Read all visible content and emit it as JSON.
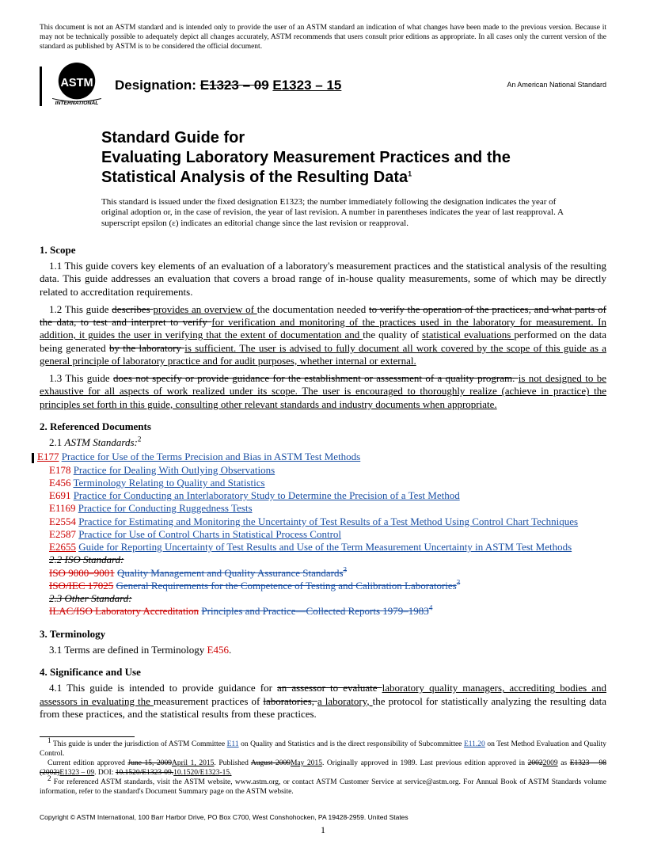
{
  "colors": {
    "code": "#cc0000",
    "link": "#1a4fa3",
    "text": "#000000",
    "bg": "#ffffff"
  },
  "top_note": "This document is not an ASTM standard and is intended only to provide the user of an ASTM standard an indication of what changes have been made to the previous version. Because it may not be technically possible to adequately depict all changes accurately, ASTM recommends that users consult prior editions as appropriate. In all cases only the current version of the standard as published by ASTM is to be considered the official document.",
  "logo_text": "INTERNATIONAL",
  "designation_label": "Designation:",
  "designation_old": "E1323 – 09",
  "designation_new": "E1323 – 15",
  "ansi": "An American National Standard",
  "title_prefix": "Standard Guide for",
  "title_main": "Evaluating Laboratory Measurement Practices and the Statistical Analysis of the Resulting Data",
  "title_sup": "1",
  "issue_note": "This standard is issued under the fixed designation E1323; the number immediately following the designation indicates the year of original adoption or, in the case of revision, the year of last revision. A number in parentheses indicates the year of last reapproval. A superscript epsilon (ε) indicates an editorial change since the last revision or reapproval.",
  "s1_head": "1.  Scope",
  "s1_1": "1.1  This guide covers key elements of an evaluation of a laboratory's measurement practices and the statistical analysis of the resulting data. This guide addresses an evaluation that covers a broad range of in-house quality measurements, some of which may be directly related to accreditation requirements.",
  "s1_2_a": "1.2  This guide ",
  "s1_2_del1": "describes ",
  "s1_2_ins1": "provides an overview of ",
  "s1_2_b": "the documentation needed ",
  "s1_2_del2": "to verify the operation of the practices, and what parts of the data, to test and interpret to verify ",
  "s1_2_ins2": "for verification and monitoring of the practices used in the laboratory for measurement. In addition, it guides the user in verifying that the extent of documentation and ",
  "s1_2_c": "the quality of ",
  "s1_2_ins3": "statistical evaluations ",
  "s1_2_d": "performed on the data being generated ",
  "s1_2_del3": "by the laboratory ",
  "s1_2_ins4": "is sufficient. The user is advised to fully document all work covered by the scope of this guide as a general principle of laboratory practice and for audit purposes, whether internal or external.",
  "s1_3_a": "1.3  This guide ",
  "s1_3_del1": "does not specify or provide guidance for the establishment or assessment of a quality program. ",
  "s1_3_ins1": "is not designed to be exhaustive for all aspects of work realized under its scope. The user is encouraged to thoroughly realize (achieve in practice) the principles set forth in this guide, consulting other relevant standards and industry documents when appropriate.",
  "s2_head": "2.  Referenced Documents",
  "s2_1_label": "2.1  ",
  "s2_1_italic": "ASTM Standards:",
  "s2_1_sup": "2",
  "refs": [
    {
      "code": "E177",
      "title": "Practice for Use of the Terms Precision and Bias in ASTM Test Methods",
      "ins": true
    },
    {
      "code": "E178",
      "title": "Practice for Dealing With Outlying Observations",
      "ins": false
    },
    {
      "code": "E456",
      "title": "Terminology Relating to Quality and Statistics",
      "ins": false
    },
    {
      "code": "E691",
      "title": "Practice for Conducting an Interlaboratory Study to Determine the Precision of a Test Method",
      "ins": false
    },
    {
      "code": "E1169",
      "title": "Practice for Conducting Ruggedness Tests",
      "ins": false
    },
    {
      "code": "E2554",
      "title": "Practice for Estimating and Monitoring the Uncertainty of Test Results of a Test Method Using Control Chart Techniques",
      "ins": false
    },
    {
      "code": "E2587",
      "title": "Practice for Use of Control Charts in Statistical Process Control",
      "ins": false
    },
    {
      "code": "E2655",
      "title": "Guide for Reporting Uncertainty of Test Results and Use of the Term Measurement Uncertainty in ASTM Test Methods",
      "ins": true
    }
  ],
  "s2_2_del_head": "2.2  ISO Standard:",
  "s2_2_del1_code": "ISO 9000–9001",
  "s2_2_del1_title": "Quality Management and Quality Assurance Standards",
  "s2_2_del1_sup": "3",
  "s2_2_del2_code": "ISO/IEC 17025",
  "s2_2_del2_title": "General Requirements for the Competence of Testing and Calibration Laboratories",
  "s2_2_del2_sup": "3",
  "s2_3_del_head": "2.3  Other Standard:",
  "s2_3_del1_code": "ILAC/ISO Laboratory Accreditation",
  "s2_3_del1_title": "Principles and Practice—Collected Reports 1979–1983",
  "s2_3_del1_sup": "4",
  "s3_head": "3.  Terminology",
  "s3_1_a": "3.1  Terms are defined in Terminology ",
  "s3_1_code": "E456",
  "s3_1_b": ".",
  "s4_head": "4.  Significance and Use",
  "s4_1_a": "4.1  This guide is intended to provide guidance for ",
  "s4_1_del1": "an assessor to evaluate ",
  "s4_1_ins1": "laboratory quality managers, accrediting bodies and assessors in evaluating the ",
  "s4_1_b": "measurement practices of ",
  "s4_1_del2": "laboratories, ",
  "s4_1_ins2": "a laboratory, ",
  "s4_1_c": "the protocol for statistically analyzing the resulting data from these practices, and the statistical results from these practices.",
  "fn1_a": " This guide is under the jurisdiction of ASTM Committee ",
  "fn1_link1": "E11",
  "fn1_b": " on Quality and Statistics and is the direct responsibility of Subcommittee ",
  "fn1_link2": "E11.20",
  "fn1_c": " on Test Method Evaluation and Quality Control.",
  "fn1b_a": "Current edition approved ",
  "fn1b_del1": "June 15, 2009",
  "fn1b_ins1": "April 1, 2015",
  "fn1b_b": ". Published ",
  "fn1b_del2": "August 2009",
  "fn1b_ins2": "May 2015",
  "fn1b_c": ". Originally approved in 1989. Last previous edition approved in ",
  "fn1b_del3": "2002",
  "fn1b_ins3": "2009",
  "fn1b_d": " as ",
  "fn1b_del4": "E1323 – 98 (2002)",
  "fn1b_ins4": "E1323 – 09",
  "fn1b_e": ". DOI: ",
  "fn1b_del5": "10.1520/E1323-09.",
  "fn1b_ins5": "10.1520/E1323-15.",
  "fn2": " For referenced ASTM standards, visit the ASTM website, www.astm.org, or contact ASTM Customer Service at service@astm.org. For Annual Book of ASTM Standards volume information, refer to the standard's Document Summary page on the ASTM website.",
  "copyright": "Copyright © ASTM International, 100 Barr Harbor Drive, PO Box C700, West Conshohocken, PA 19428-2959. United States",
  "page_num": "1"
}
